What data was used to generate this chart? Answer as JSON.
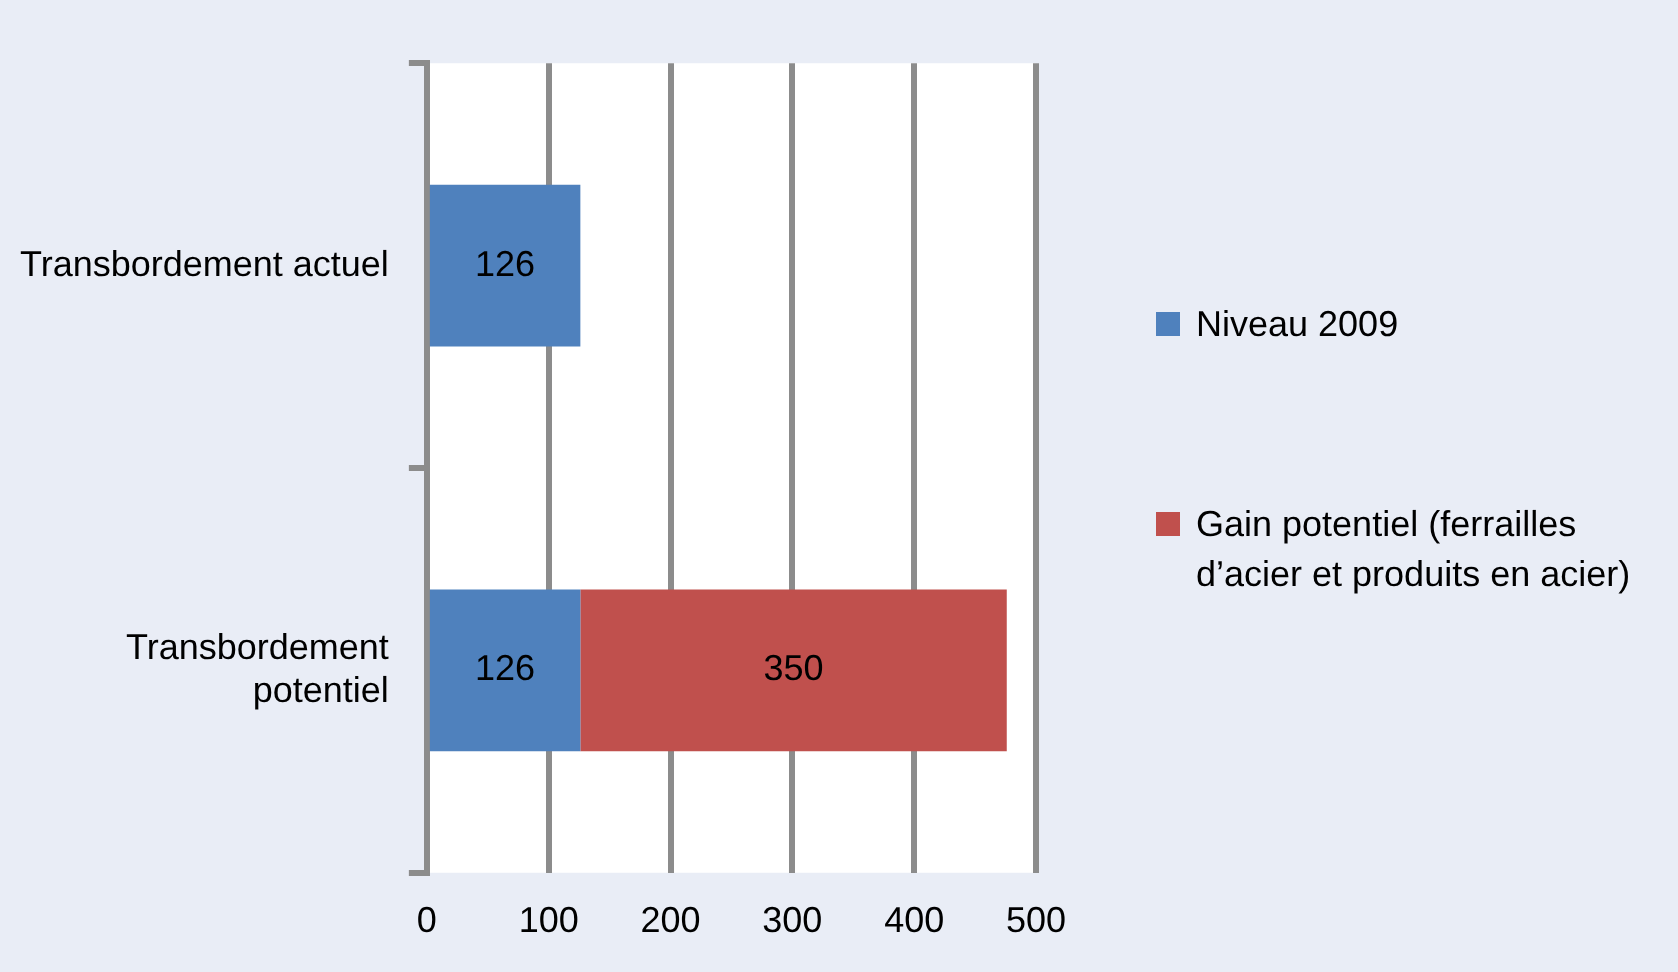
{
  "chart_data": {
    "type": "bar",
    "orientation": "horizontal",
    "stacked": true,
    "categories": [
      "Transbordement actuel",
      "Transbordement potentiel"
    ],
    "series": [
      {
        "name": "Niveau 2009",
        "color": "#4f81bd",
        "values": [
          126,
          126
        ]
      },
      {
        "name": "Gain potentiel (ferrailles d’acier et produits en acier)",
        "color": "#c0504d",
        "values": [
          null,
          350
        ]
      }
    ],
    "xlim": [
      0,
      500
    ],
    "xticks": [
      0,
      100,
      200,
      300,
      400,
      500
    ],
    "grid": "x",
    "legend": "right",
    "data_labels": true
  }
}
